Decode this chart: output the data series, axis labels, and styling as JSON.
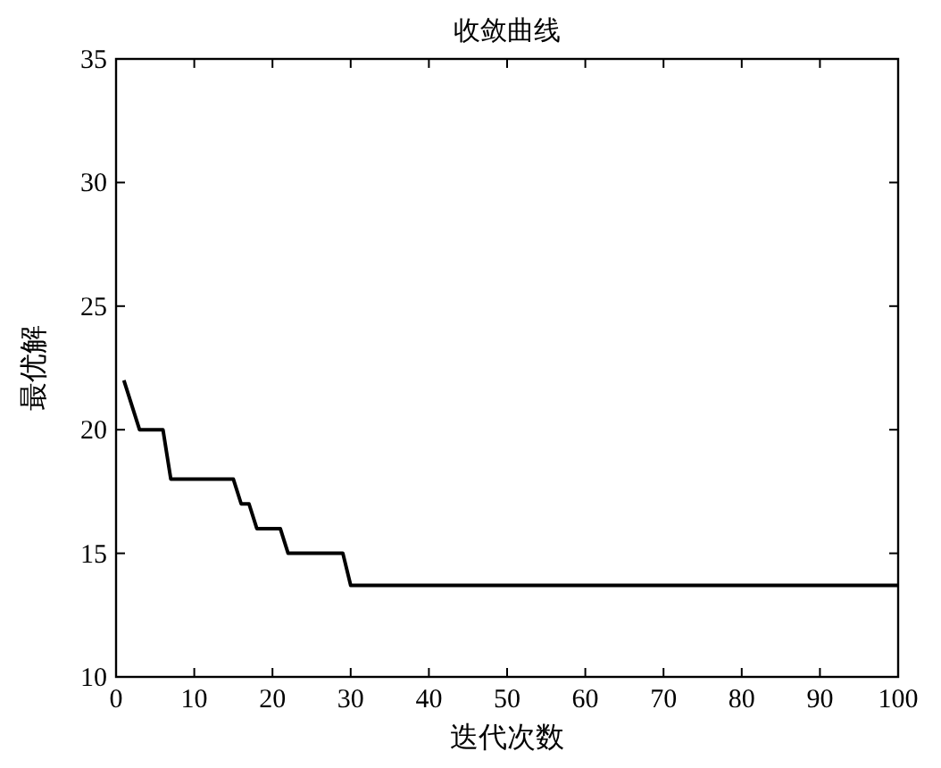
{
  "chart_data": {
    "type": "line",
    "title": "收敛曲线",
    "xlabel": "迭代次数",
    "ylabel": "最优解",
    "x": [
      1,
      3,
      6,
      7,
      15,
      16,
      17,
      18,
      21,
      22,
      29,
      30,
      100
    ],
    "series": [
      {
        "color": "#000000",
        "values": [
          22,
          20,
          20,
          18,
          18,
          17,
          17,
          16,
          16,
          15,
          15,
          13.7,
          13.7
        ]
      }
    ],
    "xlim": [
      0,
      100
    ],
    "ylim": [
      10,
      35
    ],
    "xticks": [
      0,
      10,
      20,
      30,
      40,
      50,
      60,
      70,
      80,
      90,
      100
    ],
    "yticks": [
      10,
      15,
      20,
      25,
      30,
      35
    ],
    "grid": false,
    "marker": "none",
    "line_style": "solid"
  }
}
